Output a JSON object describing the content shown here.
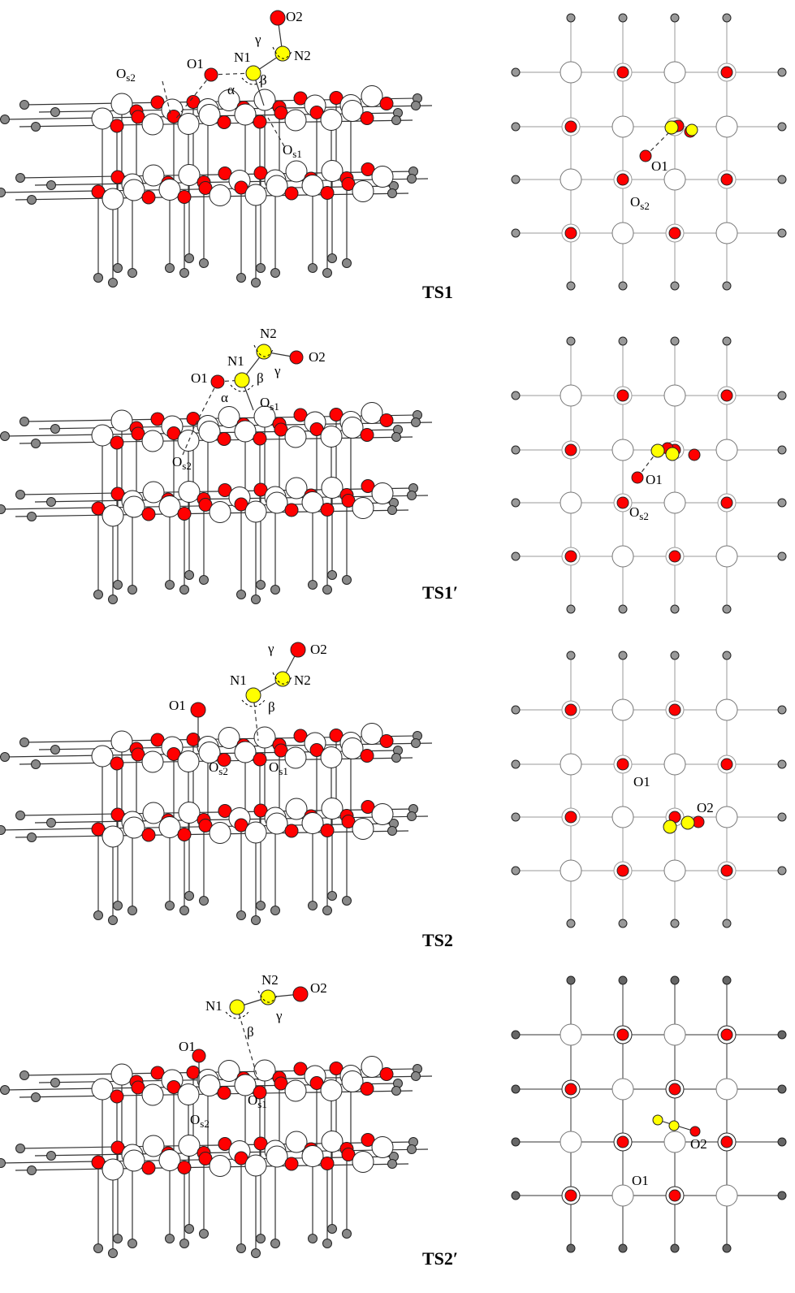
{
  "panels": [
    {
      "label": "TS1",
      "side_labels": [
        {
          "text": "O2"
        },
        {
          "text": "γ"
        },
        {
          "text": "N1"
        },
        {
          "text": "N2"
        },
        {
          "text": "O1"
        },
        {
          "text": "O",
          "sub": "s2"
        },
        {
          "text": "α"
        },
        {
          "text": "β"
        },
        {
          "text": "O",
          "sub": "s1"
        }
      ],
      "top_labels": [
        {
          "text": "O1"
        },
        {
          "text": "O",
          "sub": "s2"
        }
      ]
    },
    {
      "label": "TS1′",
      "side_labels": [
        {
          "text": "N2"
        },
        {
          "text": "O2"
        },
        {
          "text": "N1"
        },
        {
          "text": "γ"
        },
        {
          "text": "O1"
        },
        {
          "text": "β"
        },
        {
          "text": "α"
        },
        {
          "text": "O",
          "sub": "s1"
        },
        {
          "text": "O",
          "sub": "s2"
        }
      ],
      "top_labels": [
        {
          "text": "O1"
        },
        {
          "text": "O",
          "sub": "s2"
        }
      ]
    },
    {
      "label": "TS2",
      "side_labels": [
        {
          "text": "γ"
        },
        {
          "text": "O2"
        },
        {
          "text": "N1"
        },
        {
          "text": "N2"
        },
        {
          "text": "O1"
        },
        {
          "text": "β"
        },
        {
          "text": "O",
          "sub": "s2"
        },
        {
          "text": "O",
          "sub": "s1"
        }
      ],
      "top_labels": [
        {
          "text": "O1"
        },
        {
          "text": "O2"
        }
      ]
    },
    {
      "label": "TS2′",
      "side_labels": [
        {
          "text": "N2"
        },
        {
          "text": "O2"
        },
        {
          "text": "N1"
        },
        {
          "text": "γ"
        },
        {
          "text": "β"
        },
        {
          "text": "O1"
        },
        {
          "text": "O",
          "sub": "s1"
        },
        {
          "text": "O",
          "sub": "s2"
        }
      ],
      "top_labels": [
        {
          "text": "O2"
        },
        {
          "text": "O1"
        }
      ]
    }
  ]
}
